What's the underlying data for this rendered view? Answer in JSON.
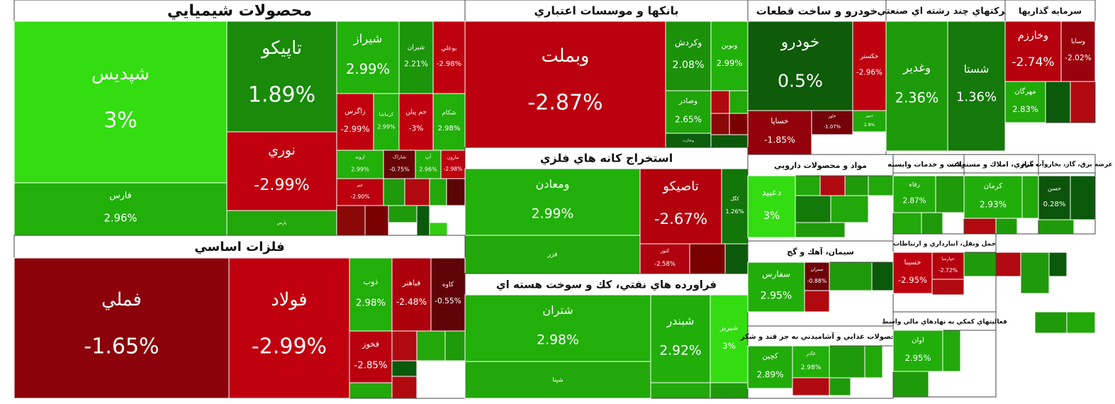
{
  "chart_data": {
    "type": "treemap",
    "sectors": [
      {
        "name": "محصولات شيميايي",
        "tiles": [
          {
            "name": "شپديس",
            "value": 3,
            "value_label": "3%"
          },
          {
            "name": "فارس",
            "value": 2.96,
            "value_label": "2.96%"
          },
          {
            "name": "تاپيكو",
            "value": 1.89,
            "value_label": "1.89%"
          },
          {
            "name": "نوري",
            "value": -2.99,
            "value_label": "-2.99%"
          },
          {
            "name": "پارس",
            "color": "#22a80a"
          },
          {
            "name": "شيراز",
            "value": 2.99,
            "value_label": "2.99%"
          },
          {
            "name": "شيران",
            "value": 2.21,
            "value_label": "2.21%"
          },
          {
            "name": "بوعلي",
            "value": -2.98,
            "value_label": "-2.98%"
          },
          {
            "name": "زاگرس",
            "value": -2.99,
            "value_label": "-2.99%"
          },
          {
            "name": "كرماشا",
            "value": 2.99,
            "value_label": "2.99%"
          },
          {
            "name": "جم پيلن",
            "value": -3,
            "value_label": "-3%"
          },
          {
            "name": "شكام",
            "value": 2.98,
            "value_label": "2.98%"
          },
          {
            "name": "اروند",
            "value": 2.99,
            "value_label": "2.99%"
          },
          {
            "name": "شاراک",
            "value": -0.75,
            "value_label": "-0.75%"
          },
          {
            "name": "آپ",
            "value": 2.96,
            "value_label": "2.96%"
          },
          {
            "name": "مارون",
            "value": -2.98,
            "value_label": "-2.98%"
          },
          {
            "name": "جم",
            "value": -2.9,
            "value_label": "-2.90%"
          }
        ]
      },
      {
        "name": "بانكها و موسسات اعتباري",
        "tiles": [
          {
            "name": "وبملت",
            "value": -2.87,
            "value_label": "-2.87%"
          },
          {
            "name": "وكردش",
            "value": 2.08,
            "value_label": "2.08%"
          },
          {
            "name": "ونوين",
            "value": 2.99,
            "value_label": "2.99%"
          },
          {
            "name": "وصادر",
            "value": 2.65,
            "value_label": "2.65%"
          },
          {
            "name": "وتجارت",
            "color": "#0d5e0d"
          }
        ]
      },
      {
        "name": "خودرو و ساخت قطعات",
        "tiles": [
          {
            "name": "خودرو",
            "value": 0.5,
            "value_label": "0.5%"
          },
          {
            "name": "خكستر",
            "value": -2.96,
            "value_label": "-2.96%"
          },
          {
            "name": "خساپا",
            "value": -1.85,
            "value_label": "-1.85%"
          },
          {
            "name": "خاور",
            "value": -1.07,
            "value_label": "-1.07%"
          },
          {
            "name": "خمور",
            "value": 2.8,
            "value_label": "2.8%"
          }
        ]
      },
      {
        "name": "شركتهاي چند رشته اي صنعتي",
        "tiles": [
          {
            "name": "وغدير",
            "value": 2.36,
            "value_label": "2.36%"
          },
          {
            "name": "شستا",
            "value": 1.36,
            "value_label": "1.36%"
          }
        ]
      },
      {
        "name": "سرمايه گذاريها",
        "tiles": [
          {
            "name": "وخارزم",
            "value": -2.74,
            "value_label": "-2.74%"
          },
          {
            "name": "وسايا",
            "value": -2.02,
            "value_label": "-2.02%"
          },
          {
            "name": "مهرگان",
            "value": 2.83,
            "value_label": "2.83%"
          }
        ]
      },
      {
        "name": "استخراج كانه هاي فلزي",
        "tiles": [
          {
            "name": "ومعادن",
            "value": 2.99,
            "value_label": "2.99%"
          },
          {
            "name": "فزر",
            "color": "#22a80a"
          },
          {
            "name": "تاصيكو",
            "value": -2.67,
            "value_label": "-2.67%"
          },
          {
            "name": "كگل",
            "value": 1.26,
            "value_label": "1.26%"
          },
          {
            "name": "كنور",
            "value": -2.58,
            "value_label": "-2.58%"
          }
        ]
      },
      {
        "name": "فلزات اساسي",
        "tiles": [
          {
            "name": "فملي",
            "value": -1.65,
            "value_label": "-1.65%"
          },
          {
            "name": "فولاد",
            "value": -2.99,
            "value_label": "-2.99%"
          },
          {
            "name": "ذوب",
            "value": 2.98,
            "value_label": "2.98%"
          },
          {
            "name": "فباهنر",
            "value": -2.48,
            "value_label": "-2.48%"
          },
          {
            "name": "كاوه",
            "value": -0.55,
            "value_label": "-0.55%"
          },
          {
            "name": "فخوز",
            "value": -2.85,
            "value_label": "-2.85%"
          }
        ]
      },
      {
        "name": "فراورده هاي نفتي، كك و سوخت هسته اي",
        "tiles": [
          {
            "name": "شتران",
            "value": 2.98,
            "value_label": "2.98%"
          },
          {
            "name": "شپنا",
            "color": "#22a80a"
          },
          {
            "name": "شبندر",
            "value": 2.92,
            "value_label": "2.92%"
          },
          {
            "name": "شبريز",
            "value": 3,
            "value_label": "3%"
          }
        ]
      },
      {
        "name": "مواد و محصولات دارويي",
        "tiles": [
          {
            "name": "دعبيد",
            "value": 3,
            "value_label": "3%"
          }
        ]
      },
      {
        "name": "سيمان، آهك و گچ",
        "tiles": [
          {
            "name": "سفارس",
            "value": 2.95,
            "value_label": "2.95%"
          },
          {
            "name": "ستران",
            "value": -0.88,
            "value_label": "-0.88%"
          }
        ]
      },
      {
        "name": "محصولات غذايي و آشاميدني به جز قند و شكر",
        "tiles": [
          {
            "name": "كچين",
            "value": 2.89,
            "value_label": "2.89%"
          },
          {
            "name": "غاذر",
            "value": 2.98,
            "value_label": "2.98%"
          }
        ]
      },
      {
        "name": "زراعت و خدمات وابسته",
        "tiles": [
          {
            "name": "رفاه",
            "value": 2.87,
            "value_label": "2.87%"
          }
        ]
      },
      {
        "name": "انبوه سازي، املاك و مستغلات",
        "tiles": [
          {
            "name": "كرمان",
            "value": 2.93,
            "value_label": "2.93%"
          }
        ]
      },
      {
        "name": "عرضه برق، گاز، بخاروآب گرم",
        "tiles": [
          {
            "name": "حسن",
            "value": 0.28,
            "value_label": "0.28%"
          }
        ]
      },
      {
        "name": "حمل ونقل، انبارداري و ارتباطات",
        "tiles": [
          {
            "name": "حسينا",
            "value": -2.95,
            "value_label": "-2.95%"
          },
          {
            "name": "حپارسا",
            "value": -2.72,
            "value_label": "-2.72%"
          }
        ]
      },
      {
        "name": "فعاليتهاي كمكي به نهادهاي مالي واسط",
        "tiles": [
          {
            "name": "اوان",
            "value": 2.95,
            "value_label": "2.95%"
          }
        ]
      }
    ]
  }
}
